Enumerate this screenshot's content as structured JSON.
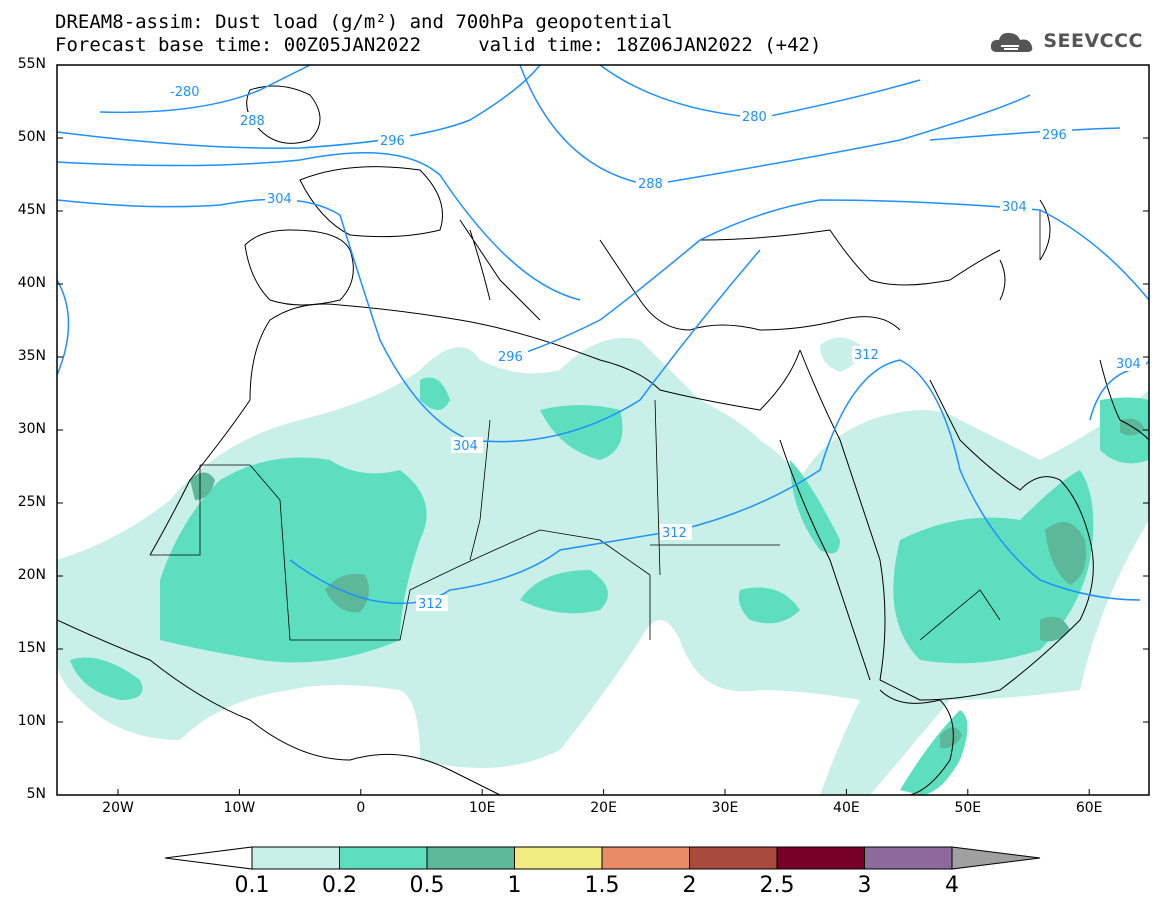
{
  "title": {
    "line1": "DREAM8-assim: Dust load (g/m²) and 700hPa geopotential",
    "line2": "Forecast base time: 00Z05JAN2022     valid time: 18Z06JAN2022 (+42)"
  },
  "brand": {
    "name": "SEEVCCC",
    "icon": "cloud-logo-icon"
  },
  "map": {
    "lat_labels": [
      "55N",
      "50N",
      "45N",
      "40N",
      "35N",
      "30N",
      "25N",
      "20N",
      "15N",
      "10N",
      "5N"
    ],
    "lon_labels": [
      "20W",
      "10W",
      "0",
      "10E",
      "20E",
      "30E",
      "40E",
      "50E",
      "60E"
    ],
    "contour_labels": [
      "-280",
      "288",
      "296",
      "304",
      "280",
      "296",
      "288",
      "304",
      "296",
      "304",
      "312",
      "312",
      "304",
      "312"
    ]
  },
  "colorbar": {
    "labels": [
      "0.1",
      "0.2",
      "0.5",
      "1",
      "1.5",
      "2",
      "2.5",
      "3",
      "4"
    ],
    "colors": [
      "#c8f0e9",
      "#5ddfbf",
      "#5cb898",
      "#f0ec82",
      "#e88c68",
      "#a84a3c",
      "#780028",
      "#8c6a9c"
    ],
    "under_color": "#ffffff",
    "over_color": "#a0a0a0"
  },
  "colors": {
    "contour": "#1e90ff",
    "coast": "#000000"
  }
}
